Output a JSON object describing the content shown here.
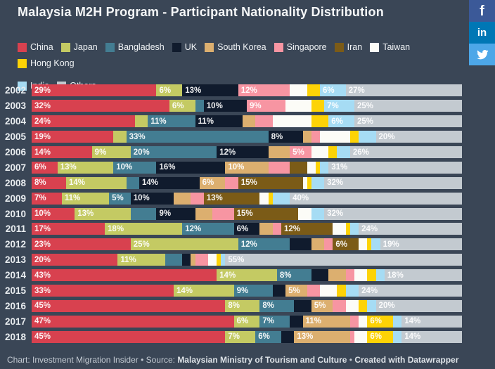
{
  "header": {
    "title": "Malaysia M2H Program - Participant Nationality Distribution"
  },
  "social": [
    {
      "name": "facebook",
      "glyph": "f",
      "color": "#3b5998"
    },
    {
      "name": "linkedin",
      "glyph": "in",
      "color": "#0077b5"
    },
    {
      "name": "twitter",
      "glyph": "twitter-bird",
      "color": "#4da7e8"
    }
  ],
  "footer": {
    "prefix": "Chart: Investment Migration Insider • Source: ",
    "source": "Malaysian Ministry of Tourism and Culture",
    "separator": " • ",
    "credit": "Created with Datawrapper"
  },
  "chart_data": {
    "type": "bar",
    "subtype": "horizontal-stacked",
    "unit": "%",
    "xlim": [
      0,
      100
    ],
    "grid": false,
    "legend_position": "top",
    "series": [
      "China",
      "Japan",
      "Bangladesh",
      "UK",
      "South Korea",
      "Singapore",
      "Iran",
      "Taiwan",
      "Hong Kong",
      "India",
      "Others"
    ],
    "colors": [
      "#d8414f",
      "#c4ca63",
      "#437d92",
      "#101b2d",
      "#dcaf6f",
      "#f795a2",
      "#7b5b17",
      "#fcfcf7",
      "#fdd306",
      "#a6dcf4",
      "#c3cad0"
    ],
    "legend_rows": [
      [
        0,
        1,
        2,
        3,
        4,
        5,
        6,
        7,
        8
      ],
      [
        9,
        10
      ]
    ],
    "rows": [
      {
        "year": "2002",
        "values": [
          29,
          6,
          0,
          13,
          0,
          12,
          0,
          4,
          3,
          6,
          27
        ],
        "labeled": [
          0,
          1,
          3,
          5,
          9,
          10
        ]
      },
      {
        "year": "2003",
        "values": [
          32,
          6,
          2,
          10,
          0,
          9,
          0,
          6,
          3,
          7,
          25
        ],
        "labeled": [
          0,
          1,
          3,
          5,
          9,
          10
        ]
      },
      {
        "year": "2004",
        "values": [
          24,
          3,
          11,
          11,
          3,
          4,
          0,
          9,
          4,
          6,
          25
        ],
        "labeled": [
          0,
          2,
          3,
          9,
          10
        ]
      },
      {
        "year": "2005",
        "values": [
          19,
          3,
          33,
          8,
          2,
          2,
          0,
          7,
          2,
          4,
          20
        ],
        "labeled": [
          0,
          2,
          3,
          10
        ]
      },
      {
        "year": "2006",
        "values": [
          14,
          9,
          20,
          12,
          5,
          5,
          0,
          4,
          2,
          3,
          26
        ],
        "labeled": [
          0,
          1,
          2,
          3,
          5,
          10
        ]
      },
      {
        "year": "2007",
        "values": [
          6,
          13,
          10,
          16,
          10,
          5,
          4,
          2,
          1,
          2,
          31
        ],
        "labeled": [
          0,
          1,
          2,
          3,
          4,
          10
        ]
      },
      {
        "year": "2008",
        "values": [
          8,
          14,
          3,
          14,
          6,
          3,
          15,
          1,
          1,
          3,
          32
        ],
        "labeled": [
          0,
          1,
          3,
          4,
          6,
          10
        ]
      },
      {
        "year": "2009",
        "values": [
          7,
          11,
          5,
          10,
          4,
          3,
          13,
          2,
          1,
          4,
          40
        ],
        "labeled": [
          0,
          1,
          2,
          3,
          6,
          10
        ]
      },
      {
        "year": "2010",
        "values": [
          10,
          13,
          6,
          9,
          4,
          5,
          15,
          3,
          0,
          3,
          32
        ],
        "labeled": [
          0,
          1,
          3,
          6,
          10
        ]
      },
      {
        "year": "2011",
        "values": [
          17,
          18,
          12,
          6,
          3,
          2,
          12,
          3,
          1,
          2,
          24
        ],
        "labeled": [
          0,
          1,
          2,
          3,
          6,
          10
        ]
      },
      {
        "year": "2012",
        "values": [
          23,
          25,
          12,
          5,
          3,
          2,
          6,
          2,
          1,
          2,
          19
        ],
        "labeled": [
          0,
          1,
          2,
          6,
          10
        ]
      },
      {
        "year": "2013",
        "values": [
          20,
          11,
          4,
          2,
          1,
          3,
          0,
          2,
          1,
          1,
          55
        ],
        "labeled": [
          0,
          1,
          10
        ]
      },
      {
        "year": "2014",
        "values": [
          43,
          14,
          8,
          4,
          4,
          2,
          0,
          3,
          2,
          2,
          18
        ],
        "labeled": [
          0,
          1,
          2,
          10
        ]
      },
      {
        "year": "2015",
        "values": [
          33,
          14,
          9,
          3,
          5,
          3,
          0,
          4,
          2,
          3,
          24
        ],
        "labeled": [
          0,
          1,
          2,
          4,
          10
        ]
      },
      {
        "year": "2016",
        "values": [
          45,
          8,
          8,
          4,
          5,
          3,
          0,
          3,
          2,
          2,
          20
        ],
        "labeled": [
          0,
          1,
          2,
          4,
          10
        ]
      },
      {
        "year": "2017",
        "values": [
          47,
          6,
          7,
          3,
          11,
          2,
          0,
          2,
          6,
          2,
          14
        ],
        "labeled": [
          0,
          1,
          2,
          4,
          8,
          10
        ]
      },
      {
        "year": "2018",
        "values": [
          45,
          7,
          6,
          3,
          13,
          1,
          0,
          3,
          6,
          2,
          14
        ],
        "labeled": [
          0,
          1,
          2,
          4,
          8,
          10
        ]
      }
    ]
  }
}
